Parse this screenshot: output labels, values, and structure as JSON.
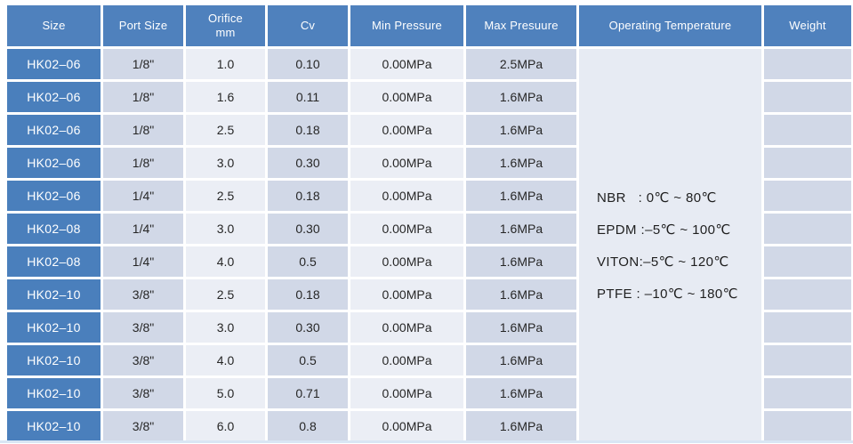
{
  "table": {
    "columns": [
      {
        "key": "size",
        "label": "Size"
      },
      {
        "key": "port",
        "label": "Port Size"
      },
      {
        "key": "orifice",
        "label": "Orifice\nmm"
      },
      {
        "key": "cv",
        "label": "Cv"
      },
      {
        "key": "min",
        "label": "Min Pressure"
      },
      {
        "key": "max",
        "label": "Max Presuure"
      },
      {
        "key": "optemp",
        "label": "Operating Temperature"
      },
      {
        "key": "weight",
        "label": "Weight"
      }
    ],
    "rows": [
      {
        "size": "HK02–06",
        "port": "1/8\"",
        "orifice": "1.0",
        "cv": "0.10",
        "min": "0.00MPa",
        "max": "2.5MPa"
      },
      {
        "size": "HK02–06",
        "port": "1/8\"",
        "orifice": "1.6",
        "cv": "0.11",
        "min": "0.00MPa",
        "max": "1.6MPa"
      },
      {
        "size": "HK02–06",
        "port": "1/8\"",
        "orifice": "2.5",
        "cv": "0.18",
        "min": "0.00MPa",
        "max": "1.6MPa"
      },
      {
        "size": "HK02–06",
        "port": "1/8\"",
        "orifice": "3.0",
        "cv": "0.30",
        "min": "0.00MPa",
        "max": "1.6MPa"
      },
      {
        "size": "HK02–06",
        "port": "1/4\"",
        "orifice": "2.5",
        "cv": "0.18",
        "min": "0.00MPa",
        "max": "1.6MPa"
      },
      {
        "size": "HK02–08",
        "port": "1/4\"",
        "orifice": "3.0",
        "cv": "0.30",
        "min": "0.00MPa",
        "max": "1.6MPa"
      },
      {
        "size": "HK02–08",
        "port": "1/4\"",
        "orifice": "4.0",
        "cv": "0.5",
        "min": "0.00MPa",
        "max": "1.6MPa"
      },
      {
        "size": "HK02–10",
        "port": "3/8\"",
        "orifice": "2.5",
        "cv": "0.18",
        "min": "0.00MPa",
        "max": "1.6MPa"
      },
      {
        "size": "HK02–10",
        "port": "3/8\"",
        "orifice": "3.0",
        "cv": "0.30",
        "min": "0.00MPa",
        "max": "1.6MPa"
      },
      {
        "size": "HK02–10",
        "port": "3/8\"",
        "orifice": "4.0",
        "cv": "0.5",
        "min": "0.00MPa",
        "max": "1.6MPa"
      },
      {
        "size": "HK02–10",
        "port": "3/8\"",
        "orifice": "5.0",
        "cv": "0.71",
        "min": "0.00MPa",
        "max": "1.6MPa"
      },
      {
        "size": "HK02–10",
        "port": "3/8\"",
        "orifice": "6.0",
        "cv": "0.8",
        "min": "0.00MPa",
        "max": "1.6MPa"
      }
    ],
    "operating_temperature_lines": [
      "NBR   : 0℃ ~ 80℃",
      "EPDM :–5℃ ~ 100℃",
      "VITON:–5℃ ~ 120℃",
      "PTFE : –10℃ ~ 180℃"
    ],
    "weight_value": ""
  },
  "colors": {
    "header_bg": "#4f81bd",
    "size_col_bg": "#4a7fbc",
    "cell_dark": "#d1d8e7",
    "cell_light": "#ebeef5",
    "optemp_bg": "#e7ebf3",
    "gap": "#ffffff",
    "cell_text": "#262626",
    "header_text": "#ffffff",
    "bottom_strip": "#d9e6f4"
  }
}
